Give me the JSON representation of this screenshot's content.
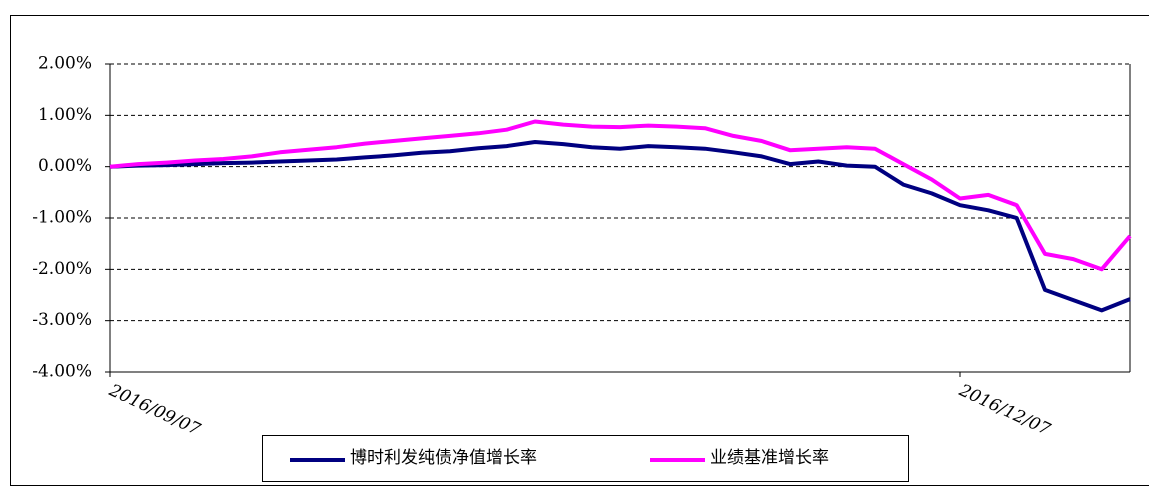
{
  "chart_data": {
    "type": "line",
    "categories": [
      "2016/09/07",
      null,
      null,
      null,
      null,
      null,
      null,
      null,
      null,
      null,
      null,
      null,
      null,
      null,
      null,
      null,
      null,
      null,
      null,
      null,
      null,
      null,
      null,
      null,
      null,
      null,
      null,
      null,
      null,
      null,
      "2016/12/07",
      null,
      null,
      null,
      null,
      null,
      null
    ],
    "series": [
      {
        "name": "博时利发纯债净值增长率",
        "color": "#000080",
        "values": [
          0,
          0.02,
          0.03,
          0.05,
          0.07,
          0.08,
          0.1,
          0.12,
          0.14,
          0.18,
          0.22,
          0.27,
          0.3,
          0.36,
          0.4,
          0.48,
          0.44,
          0.38,
          0.35,
          0.4,
          0.38,
          0.35,
          0.28,
          0.2,
          0.05,
          0.1,
          0.02,
          0.0,
          -0.35,
          -0.52,
          -0.75,
          -0.85,
          -1.0,
          -2.4,
          -2.6,
          -2.8,
          -2.58
        ]
      },
      {
        "name": "业绩基准增长率",
        "color": "#ff00ff",
        "values": [
          0,
          0.05,
          0.08,
          0.12,
          0.15,
          0.2,
          0.28,
          0.33,
          0.38,
          0.45,
          0.5,
          0.55,
          0.6,
          0.65,
          0.72,
          0.88,
          0.82,
          0.78,
          0.77,
          0.8,
          0.78,
          0.75,
          0.6,
          0.5,
          0.32,
          0.35,
          0.38,
          0.35,
          0.05,
          -0.25,
          -0.62,
          -0.55,
          -0.75,
          -1.7,
          -1.8,
          -2.0,
          -1.35
        ]
      }
    ],
    "ylim": [
      -4,
      2
    ],
    "yticks": [
      {
        "value": -4,
        "label": "-4.00%"
      },
      {
        "value": -3,
        "label": "-3.00%"
      },
      {
        "value": -2,
        "label": "-2.00%"
      },
      {
        "value": -1,
        "label": "-1.00%"
      },
      {
        "value": 0,
        "label": "0.00%"
      },
      {
        "value": 1,
        "label": "1.00%"
      },
      {
        "value": 2,
        "label": "2.00%"
      }
    ],
    "grid": true
  }
}
